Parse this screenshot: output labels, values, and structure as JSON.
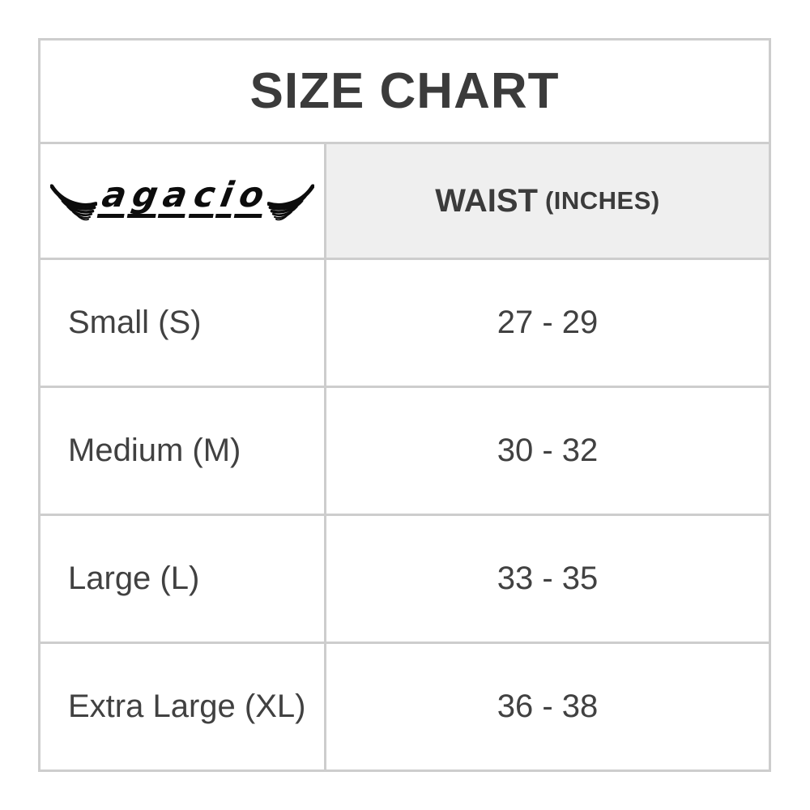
{
  "title": "SIZE CHART",
  "logo": {
    "text": "agacio",
    "left_wing_icon": "wing-left-icon",
    "right_wing_icon": "wing-right-icon"
  },
  "header": {
    "waist_label": "WAIST",
    "waist_unit": "(INCHES)"
  },
  "rows": [
    {
      "size": "Small (S)",
      "waist": "27 - 29"
    },
    {
      "size": "Medium (M)",
      "waist": "30 - 32"
    },
    {
      "size": "Large (L)",
      "waist": "33 - 35"
    },
    {
      "size": "Extra Large (XL)",
      "waist": "36 - 38"
    }
  ],
  "colors": {
    "border": "#cdcdcd",
    "header_bg": "#efefef",
    "text": "#414141",
    "title_text": "#3b3b3b",
    "logo": "#0c0c0c",
    "background": "#ffffff"
  }
}
